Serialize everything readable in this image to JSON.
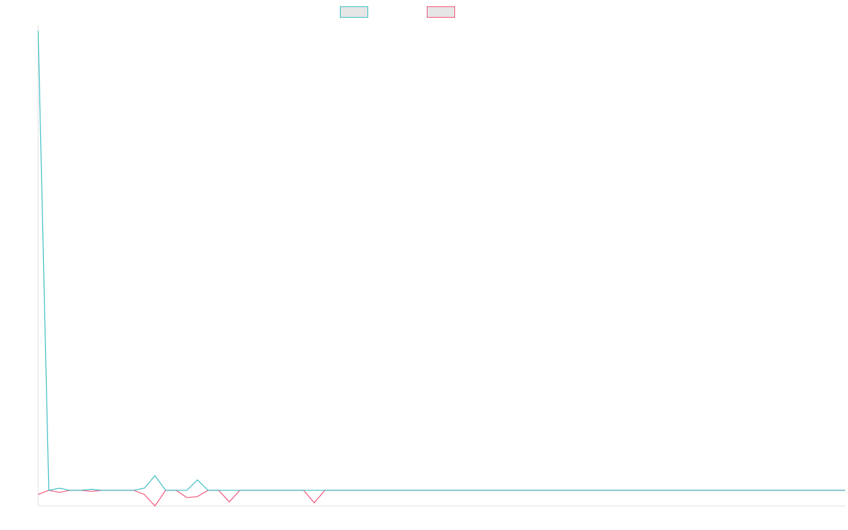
{
  "chart_data": {
    "type": "line",
    "title": "",
    "xlabel": "",
    "ylabel": "",
    "legend": {
      "position": "top-center",
      "entries": [
        "",
        ""
      ]
    },
    "grid": false,
    "x": [
      0,
      1,
      2,
      3,
      4,
      5,
      6,
      7,
      8,
      9,
      10,
      11,
      12,
      13,
      14,
      15,
      16,
      17,
      18,
      19,
      20,
      21,
      22,
      23,
      24,
      25,
      26,
      27,
      28,
      29,
      30,
      31,
      32,
      33,
      34,
      35,
      36,
      37,
      38,
      39,
      40,
      41,
      42,
      43,
      44,
      45,
      46,
      47,
      48,
      49,
      50,
      51,
      52,
      53,
      54,
      55,
      56,
      57,
      58,
      59,
      60,
      61,
      62,
      63,
      64,
      65,
      66,
      67,
      68,
      69,
      70,
      71,
      72,
      73,
      74,
      75,
      76
    ],
    "ylim": [
      -1.5,
      44.5
    ],
    "series": [
      {
        "color": "#3dbdc4",
        "values": [
          44,
          0,
          0.2,
          0,
          0,
          0.1,
          0,
          0,
          0,
          0,
          0.2,
          1.4,
          0,
          0,
          0,
          1,
          0,
          0,
          0,
          0,
          0,
          0,
          0,
          0,
          0,
          0,
          0,
          0,
          0,
          0,
          0,
          0,
          0,
          0,
          0,
          0,
          0,
          0,
          0,
          0,
          0,
          0,
          0,
          0,
          0,
          0,
          0,
          0,
          0,
          0,
          0,
          0,
          0,
          0,
          0,
          0,
          0,
          0,
          0,
          0,
          0,
          0,
          0,
          0,
          0,
          0,
          0,
          0,
          0,
          0,
          0,
          0,
          0,
          0,
          0,
          0,
          0
        ]
      },
      {
        "color": "#f2557a",
        "values": [
          -0.4,
          0,
          -0.2,
          0,
          0,
          -0.1,
          0,
          0,
          0,
          0,
          -0.4,
          -1.5,
          0,
          0,
          -0.7,
          -0.6,
          0,
          0,
          -1.1,
          0,
          0,
          0,
          0,
          0,
          0,
          0,
          -1.2,
          0,
          0,
          0,
          0,
          0,
          0,
          0,
          0,
          0,
          0,
          0,
          0,
          0,
          0,
          0,
          0,
          0,
          0,
          0,
          0,
          0,
          0,
          0,
          0,
          0,
          0,
          0,
          0,
          0,
          0,
          0,
          0,
          0,
          0,
          0,
          0,
          0,
          0,
          0,
          0,
          0,
          0,
          0,
          0,
          0,
          0,
          0,
          0,
          0,
          0
        ]
      }
    ]
  }
}
